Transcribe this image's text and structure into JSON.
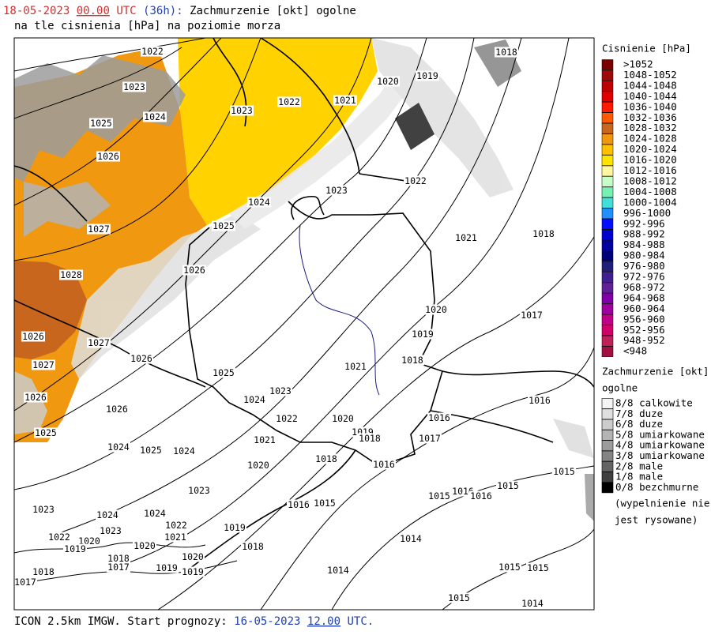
{
  "header": {
    "date": "18-05-2023",
    "hour": "00.00",
    "tz": "UTC",
    "lead": "(36h):",
    "title": "Zachmurzenie [okt] ogolne",
    "subtitle": "na tle cisnienia [hPa] na poziomie morza"
  },
  "footer": {
    "model": "ICON 2.5km IMGW. Start prognozy:",
    "start_date": "16-05-2023",
    "start_hour": "12.00",
    "tz": "UTC."
  },
  "pressure_legend": {
    "title": "Cisnienie [hPa]",
    "items": [
      {
        "label": ">1052",
        "color": "#7a0000"
      },
      {
        "label": "1048-1052",
        "color": "#9c0a0a"
      },
      {
        "label": "1044-1048",
        "color": "#be0000"
      },
      {
        "label": "1040-1044",
        "color": "#e00000"
      },
      {
        "label": "1036-1040",
        "color": "#ff1a00"
      },
      {
        "label": "1032-1036",
        "color": "#ff5a00"
      },
      {
        "label": "1028-1032",
        "color": "#c8661e"
      },
      {
        "label": "1024-1028",
        "color": "#f0960f"
      },
      {
        "label": "1020-1024",
        "color": "#ffc000"
      },
      {
        "label": "1016-1020",
        "color": "#ffe400"
      },
      {
        "label": "1012-1016",
        "color": "#fff8a0"
      },
      {
        "label": "1008-1012",
        "color": "#c8ffc8"
      },
      {
        "label": "1004-1008",
        "color": "#78f0b4"
      },
      {
        "label": "1000-1004",
        "color": "#40e0d8"
      },
      {
        "label": "996-1000",
        "color": "#2090ff"
      },
      {
        "label": "992-996",
        "color": "#0010ff"
      },
      {
        "label": "988-992",
        "color": "#0000d0"
      },
      {
        "label": "984-988",
        "color": "#0000a0"
      },
      {
        "label": "980-984",
        "color": "#000078"
      },
      {
        "label": "976-980",
        "color": "#20207a"
      },
      {
        "label": "972-976",
        "color": "#402090"
      },
      {
        "label": "968-972",
        "color": "#602098"
      },
      {
        "label": "964-968",
        "color": "#8000a8"
      },
      {
        "label": "960-964",
        "color": "#a000a0"
      },
      {
        "label": "956-960",
        "color": "#c00088"
      },
      {
        "label": "952-956",
        "color": "#d00068"
      },
      {
        "label": "948-952",
        "color": "#c02058"
      },
      {
        "label": "<948",
        "color": "#a01040"
      }
    ]
  },
  "cloud_legend": {
    "title": "Zachmurzenie [okt]",
    "subtitle": "ogolne",
    "items": [
      {
        "label": "8/8 calkowite",
        "color": "#f4f4f4"
      },
      {
        "label": "7/8 duze",
        "color": "#e0e0e0"
      },
      {
        "label": "6/8 duze",
        "color": "#cccccc"
      },
      {
        "label": "5/8 umiarkowane",
        "color": "#b4b4b4"
      },
      {
        "label": "4/8 umiarkowane",
        "color": "#9c9c9c"
      },
      {
        "label": "3/8 umiarkowane",
        "color": "#848484"
      },
      {
        "label": "2/8 male",
        "color": "#646464"
      },
      {
        "label": "1/8 male",
        "color": "#404040"
      },
      {
        "label": "0/8 bezchmurne",
        "color": "#000000"
      }
    ],
    "note": [
      "(wypelnienie nie",
      "jest rysowane)"
    ]
  },
  "isobar_labels": [
    "1022",
    "1018",
    "1023",
    "1020",
    "1019",
    "1022",
    "1021",
    "1023",
    "1025",
    "1024",
    "1026",
    "1023",
    "1022",
    "1024",
    "1025",
    "1027",
    "1021",
    "1018",
    "1026",
    "1028",
    "1020",
    "1017",
    "1019",
    "1026",
    "1027",
    "1026",
    "1018",
    "1021",
    "1027",
    "1025",
    "1023",
    "1024",
    "1026",
    "1026",
    "1016",
    "1016",
    "1022",
    "1020",
    "1019",
    "1018",
    "1017",
    "1025",
    "1021",
    "1024",
    "1025",
    "1024",
    "1018",
    "1020",
    "1016",
    "1015",
    "1015",
    "1016",
    "1016",
    "1015",
    "1023",
    "1016",
    "1015",
    "1023",
    "1024",
    "1024",
    "1022",
    "1019",
    "1021",
    "1023",
    "1022",
    "1020",
    "1019",
    "1014",
    "1020",
    "1018",
    "1020",
    "1018",
    "1017",
    "1019",
    "1019",
    "1014",
    "1015",
    "1015",
    "1018",
    "1017",
    "1015",
    "1014"
  ]
}
